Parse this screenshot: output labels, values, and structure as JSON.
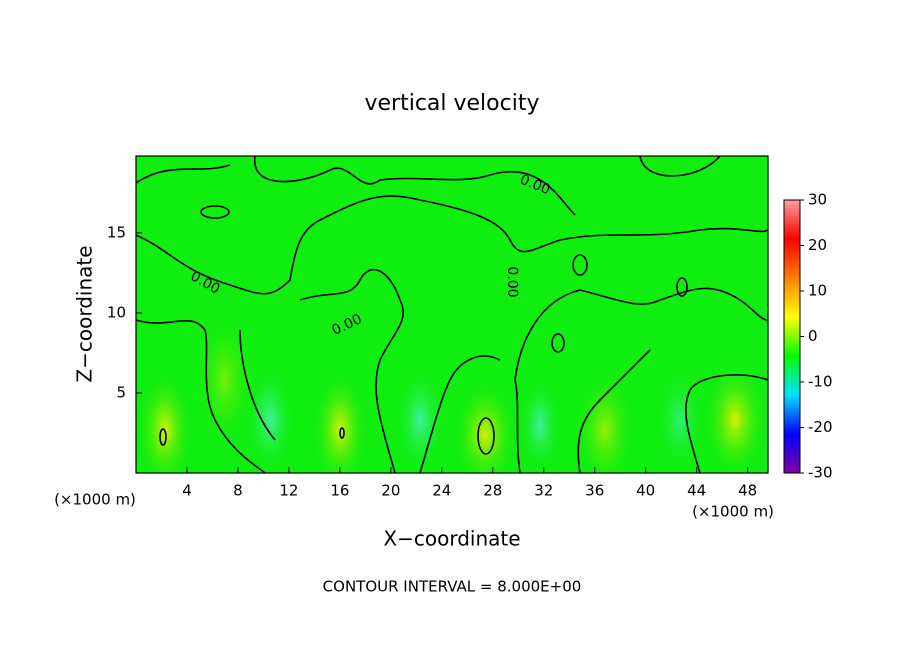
{
  "chart_data": {
    "type": "contour",
    "title": "vertical velocity",
    "xlabel": "X−coordinate",
    "ylabel": "Z−coordinate",
    "x_unit_label": "(×1000 m)",
    "y_unit_label": "(×1000 m)",
    "annotation": "CONTOUR INTERVAL = 8.000E+00",
    "contour_labels": [
      "0.00",
      "0.00",
      "0.00",
      "0.00"
    ],
    "xlim": [
      0,
      49.6
    ],
    "xticks": [
      4,
      8,
      12,
      16,
      20,
      24,
      28,
      32,
      36,
      40,
      44,
      48
    ],
    "ylim": [
      0,
      19.8
    ],
    "yticks": [
      5,
      10,
      15
    ],
    "grid": false,
    "colorbar": {
      "lim": [
        -30,
        30
      ],
      "ticks": [
        -30,
        -20,
        -10,
        0,
        10,
        20,
        30
      ],
      "colors": [
        "#8000a0",
        "#0000ff",
        "#00e0ff",
        "#00ff00",
        "#ffff00",
        "#ff8000",
        "#ff0000",
        "#ffa0a0"
      ]
    }
  }
}
